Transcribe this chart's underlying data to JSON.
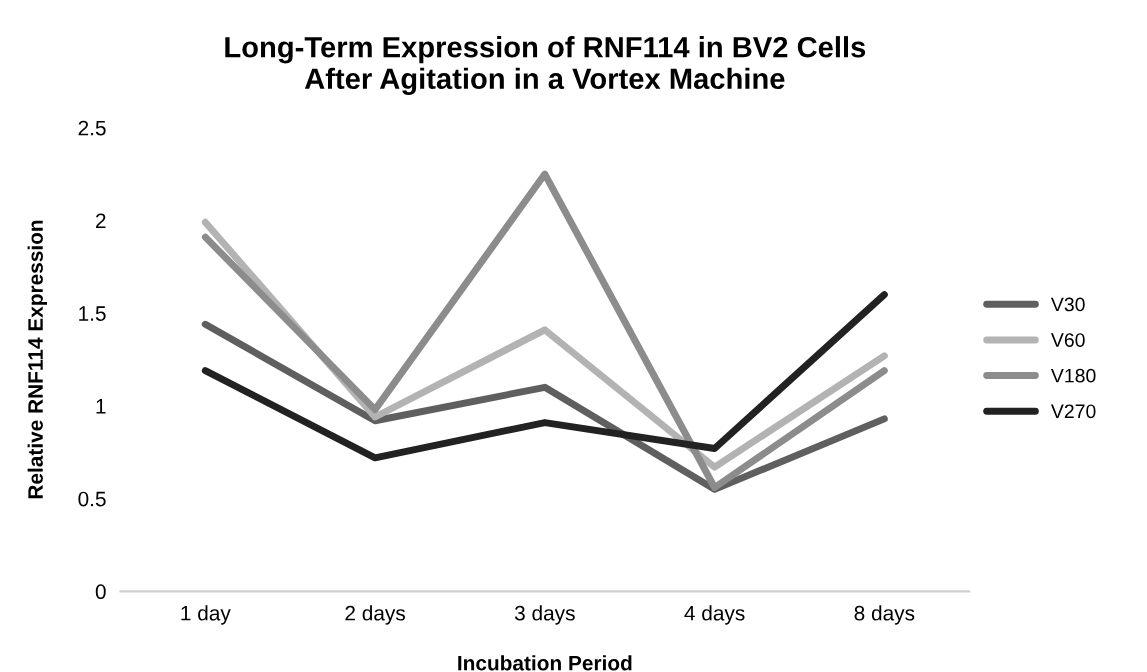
{
  "chart_data": {
    "type": "line",
    "title": "Long-Term Expression of RNF114 in BV2 Cells\nAfter Agitation in a Vortex Machine",
    "xlabel": "Incubation Period",
    "ylabel": "Relative RNF114 Expression",
    "categories": [
      "1 day",
      "2 days",
      "3 days",
      "4 days",
      "8 days"
    ],
    "series": [
      {
        "name": "V30",
        "color": "#5f5f5f",
        "values": [
          1.44,
          0.92,
          1.1,
          0.55,
          0.93
        ]
      },
      {
        "name": "V60",
        "color": "#b3b3b3",
        "values": [
          1.99,
          0.94,
          1.41,
          0.67,
          1.27
        ]
      },
      {
        "name": "V180",
        "color": "#8c8c8c",
        "values": [
          1.91,
          0.98,
          2.25,
          0.56,
          1.19
        ]
      },
      {
        "name": "V270",
        "color": "#222222",
        "values": [
          1.19,
          0.72,
          0.91,
          0.77,
          1.6
        ]
      }
    ],
    "ylim": [
      0,
      2.5
    ],
    "yticks": [
      0,
      0.5,
      1,
      1.5,
      2,
      2.5
    ],
    "grid": false,
    "legend": "right",
    "marker": "none",
    "line_style": "solid"
  }
}
